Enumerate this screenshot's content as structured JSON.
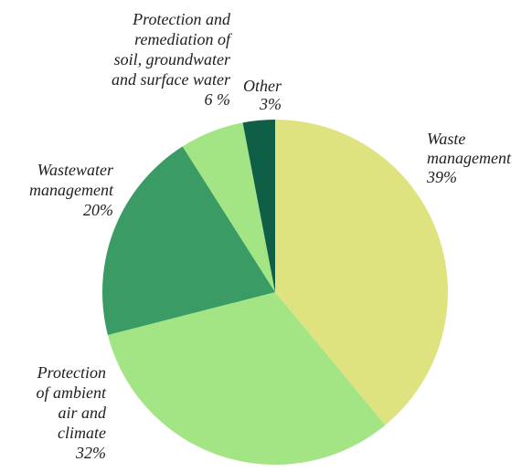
{
  "chart_data": {
    "type": "pie",
    "title": "",
    "slices": [
      {
        "label": "Waste management",
        "value": 39,
        "display": [
          "Waste",
          "management",
          "39%"
        ],
        "color": "#dfe37f"
      },
      {
        "label": "Protection of ambient air and climate",
        "value": 32,
        "display": [
          "Protection",
          "of ambient",
          "air and",
          "climate",
          "32%"
        ],
        "color": "#a3e585"
      },
      {
        "label": "Wastewater management",
        "value": 20,
        "display": [
          "Wastewater",
          "management",
          "20%"
        ],
        "color": "#3a9b64"
      },
      {
        "label": "Protection and remediation of soil, groundwater and surface water",
        "value": 6,
        "display": [
          "Protection and",
          "remediation of",
          "soil, groundwater",
          "and surface water",
          "6 %"
        ],
        "color": "#a3e585"
      },
      {
        "label": "Other",
        "value": 3,
        "display": [
          "Other",
          "3%"
        ],
        "color": "#0e5f45"
      }
    ]
  }
}
